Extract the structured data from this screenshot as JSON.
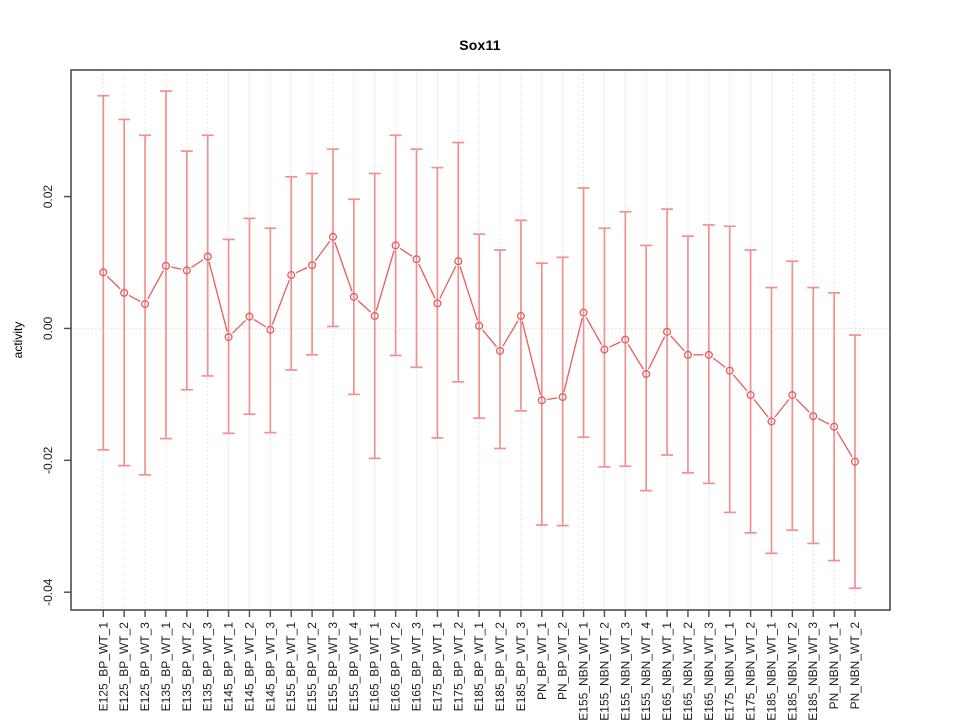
{
  "figure": {
    "title": "Sox11"
  },
  "chart_data": {
    "type": "line",
    "title": "Sox11",
    "xlabel": "",
    "ylabel": "activity",
    "legend": "none",
    "grid": "vertical dotted gridline at every category; horizontal dotted line at y=0 only",
    "marker": "open-circle",
    "error_bars": true,
    "ylim": [
      -0.0427,
      0.0392
    ],
    "yticks": {
      "values": [
        0.02,
        0.0,
        -0.02,
        -0.04
      ],
      "labels": [
        "0.02",
        "0.00",
        "-0.02",
        "-0.04"
      ]
    },
    "categories": [
      "E125_BP_WT_1",
      "E125_BP_WT_2",
      "E125_BP_WT_3",
      "E135_BP_WT_1",
      "E135_BP_WT_2",
      "E135_BP_WT_3",
      "E145_BP_WT_1",
      "E145_BP_WT_2",
      "E145_BP_WT_3",
      "E155_BP_WT_1",
      "E155_BP_WT_2",
      "E155_BP_WT_3",
      "E155_BP_WT_4",
      "E165_BP_WT_1",
      "E165_BP_WT_2",
      "E165_BP_WT_3",
      "E175_BP_WT_1",
      "E175_BP_WT_2",
      "E185_BP_WT_1",
      "E185_BP_WT_2",
      "E185_BP_WT_3",
      "PN_BP_WT_1",
      "PN_BP_WT_2",
      "E155_NBN_WT_1",
      "E155_NBN_WT_2",
      "E155_NBN_WT_3",
      "E155_NBN_WT_4",
      "E165_NBN_WT_1",
      "E165_NBN_WT_2",
      "E165_NBN_WT_3",
      "E175_NBN_WT_1",
      "E175_NBN_WT_2",
      "E185_NBN_WT_1",
      "E185_NBN_WT_2",
      "E185_NBN_WT_3",
      "PN_NBN_WT_1",
      "PN_NBN_WT_2"
    ],
    "series": [
      {
        "name": "mean",
        "values": [
          0.0085,
          0.0054,
          0.0037,
          0.0095,
          0.0088,
          0.0109,
          -0.0013,
          0.0018,
          -0.0002,
          0.0081,
          0.0096,
          0.0139,
          0.0048,
          0.0019,
          0.0126,
          0.0105,
          0.0038,
          0.0102,
          0.0004,
          -0.0034,
          0.0019,
          -0.0109,
          -0.0104,
          0.0024,
          -0.0032,
          -0.0017,
          -0.0069,
          -0.0005,
          -0.004,
          -0.004,
          -0.0064,
          -0.0101,
          -0.0141,
          -0.0101,
          -0.0133,
          -0.0149,
          -0.0202
        ]
      },
      {
        "name": "lower",
        "values": [
          -0.0184,
          -0.0208,
          -0.0222,
          -0.0167,
          -0.0093,
          -0.0072,
          -0.0159,
          -0.013,
          -0.0158,
          -0.0063,
          -0.004,
          0.0003,
          -0.01,
          -0.0197,
          -0.0041,
          -0.0059,
          -0.0166,
          -0.0081,
          -0.0136,
          -0.0182,
          -0.0125,
          -0.0298,
          -0.0299,
          -0.0165,
          -0.021,
          -0.0209,
          -0.0246,
          -0.0192,
          -0.0219,
          -0.0235,
          -0.0279,
          -0.031,
          -0.0341,
          -0.0306,
          -0.0326,
          -0.0352,
          -0.0394
        ]
      },
      {
        "name": "upper",
        "values": [
          0.0353,
          0.0317,
          0.0293,
          0.036,
          0.0269,
          0.0293,
          0.0135,
          0.0167,
          0.0152,
          0.023,
          0.0235,
          0.0272,
          0.0196,
          0.0235,
          0.0293,
          0.0272,
          0.0244,
          0.0282,
          0.0143,
          0.0119,
          0.0164,
          0.0099,
          0.0108,
          0.0213,
          0.0152,
          0.0177,
          0.0126,
          0.0181,
          0.014,
          0.0157,
          0.0155,
          0.0119,
          0.0062,
          0.0102,
          0.0062,
          0.0054,
          -0.001
        ]
      }
    ],
    "colors": {
      "point_line": "#e85c5c",
      "error_bar": "#f29090",
      "grid": "#dcdcdc",
      "box": "#4d4d4d",
      "tick": "#4d4d4d",
      "text": "#1a1a1a",
      "background": "#ffffff"
    }
  }
}
